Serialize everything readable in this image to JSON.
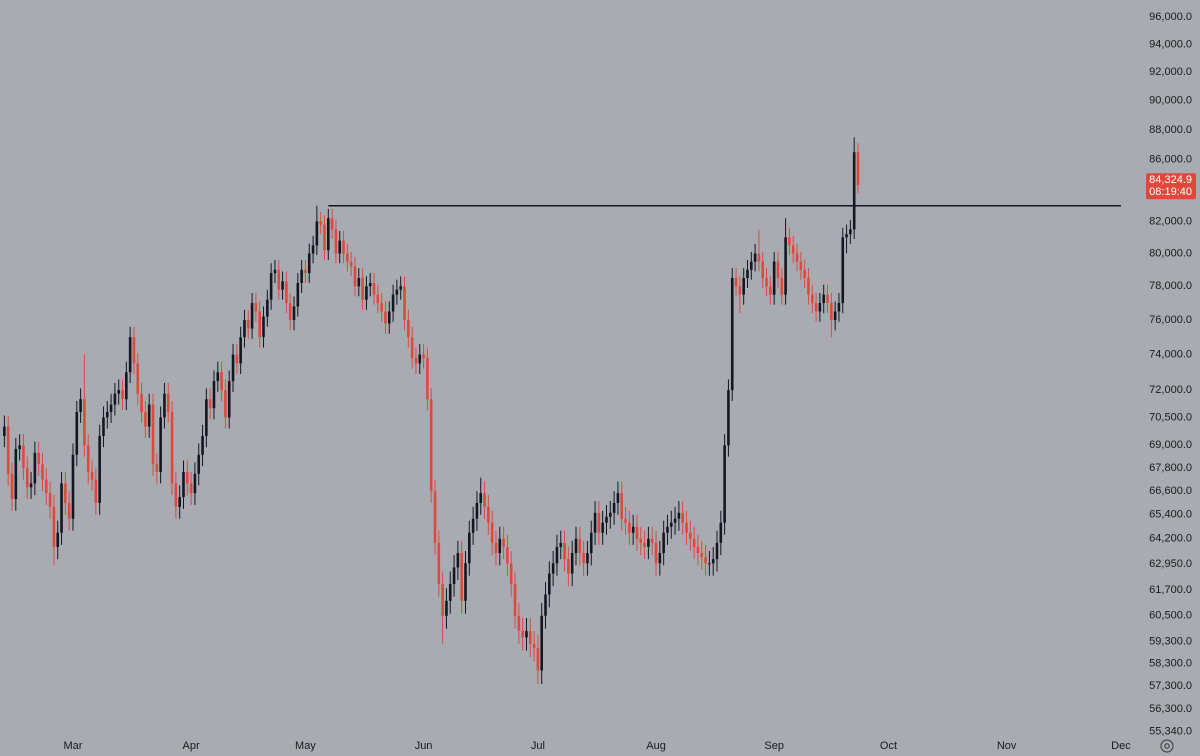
{
  "chart_data": {
    "type": "candlestick",
    "log_scale": true,
    "background": "#a9abb3",
    "up_color": "#131722",
    "down_color": "#e0483c",
    "line_color": "#131722",
    "xlim": [
      -1.15,
      298
    ],
    "xticks": [
      {
        "value": 18,
        "label": "Mar"
      },
      {
        "value": 49,
        "label": "Apr"
      },
      {
        "value": 79,
        "label": "May"
      },
      {
        "value": 110,
        "label": "Jun"
      },
      {
        "value": 140,
        "label": "Jul"
      },
      {
        "value": 171,
        "label": "Aug"
      },
      {
        "value": 202,
        "label": "Sep"
      },
      {
        "value": 232,
        "label": "Oct"
      },
      {
        "value": 263,
        "label": "Nov"
      },
      {
        "value": 293,
        "label": "Dec"
      }
    ],
    "ylim": [
      54300,
      97270
    ],
    "yticks": [
      {
        "value": 96000,
        "label": "96,000.0"
      },
      {
        "value": 94000,
        "label": "94,000.0"
      },
      {
        "value": 92000,
        "label": "92,000.0"
      },
      {
        "value": 90000,
        "label": "90,000.0"
      },
      {
        "value": 88000,
        "label": "88,000.0"
      },
      {
        "value": 86000,
        "label": "86,000.0"
      },
      {
        "value": 82000,
        "label": "82,000.0"
      },
      {
        "value": 80000,
        "label": "80,000.0"
      },
      {
        "value": 78000,
        "label": "78,000.0"
      },
      {
        "value": 76000,
        "label": "76,000.0"
      },
      {
        "value": 74000,
        "label": "74,000.0"
      },
      {
        "value": 72000,
        "label": "72,000.0"
      },
      {
        "value": 70500,
        "label": "70,500.0"
      },
      {
        "value": 69000,
        "label": "69,000.0"
      },
      {
        "value": 67800,
        "label": "67,800.0"
      },
      {
        "value": 66600,
        "label": "66,600.0"
      },
      {
        "value": 65400,
        "label": "65,400.0"
      },
      {
        "value": 64200,
        "label": "64,200.0"
      },
      {
        "value": 62950,
        "label": "62,950.0"
      },
      {
        "value": 61700,
        "label": "61,700.0"
      },
      {
        "value": 60500,
        "label": "60,500.0"
      },
      {
        "value": 59300,
        "label": "59,300.0"
      },
      {
        "value": 58300,
        "label": "58,300.0"
      },
      {
        "value": 57300,
        "label": "57,300.0"
      },
      {
        "value": 56300,
        "label": "56,300.0"
      },
      {
        "value": 55340,
        "label": "55,340.0"
      }
    ],
    "level_line": {
      "value": 83000,
      "from": 85,
      "to": 293
    },
    "last_price_label": "84,324.9",
    "countdown_label": "08:19:40",
    "open": [
      69500,
      70000,
      67500,
      66200,
      68800,
      69000,
      67800,
      66800,
      67000,
      68600,
      68000,
      67200,
      66500,
      65800,
      63800,
      64500,
      67000,
      66000,
      65200,
      68500,
      70800,
      71500,
      69000,
      67600,
      67200,
      66000,
      69500,
      70500,
      70800,
      71200,
      71800,
      72000,
      71500,
      73000,
      75000,
      73500,
      71800,
      70800,
      70000,
      71200,
      68000,
      67600,
      70500,
      71800,
      70800,
      67000,
      65800,
      66300,
      67600,
      67000,
      66500,
      67500,
      68500,
      69500,
      71500,
      71000,
      72500,
      73000,
      72000,
      70500,
      72500,
      74000,
      73500,
      75000,
      76000,
      75500,
      77000,
      76500,
      75000,
      76200,
      77200,
      78800,
      79000,
      77800,
      78300,
      77000,
      76000,
      76800,
      78200,
      79000,
      78800,
      80000,
      80500,
      82000,
      81800,
      80200,
      82200,
      81500,
      80000,
      80800,
      80000,
      79500,
      79200,
      78000,
      78500,
      77200,
      78000,
      78200,
      77500,
      77000,
      76500,
      75800,
      76500,
      77500,
      77800,
      78000,
      76000,
      75000,
      73800,
      73500,
      74000,
      73800,
      71500,
      66600,
      64000,
      62000,
      60500,
      61200,
      62000,
      62800,
      63500,
      61200,
      63000,
      64500,
      65200,
      66000,
      66500,
      65800,
      65000,
      64000,
      63500,
      64200,
      63800,
      63000,
      62000,
      60500,
      59800,
      59500,
      59800,
      59200,
      59000,
      58000,
      60500,
      61500,
      62500,
      63000,
      63800,
      64000,
      63200,
      62500,
      63500,
      64200,
      63500,
      63000,
      63500,
      64500,
      65500,
      64500,
      65000,
      65300,
      65500,
      66000,
      66500,
      65200,
      65000,
      64500,
      64800,
      64200,
      64000,
      63800,
      64200,
      64000,
      63000,
      63500,
      64500,
      64800,
      65000,
      65200,
      65500,
      65000,
      64500,
      64200,
      63800,
      63500,
      63300,
      63000,
      63000,
      63200,
      64000,
      65000,
      69000,
      72000,
      78500,
      78000,
      77500,
      78500,
      79000,
      79500,
      80000,
      79500,
      78500,
      78000,
      77500,
      79500,
      78500,
      77500,
      81000,
      80500,
      80000,
      79500,
      79000,
      78500,
      77500,
      77000,
      76500,
      77000,
      77500,
      77000,
      76000,
      76500,
      77000,
      81000,
      81200,
      81500,
      86500
    ],
    "high": [
      70600,
      70600,
      68100,
      69400,
      69600,
      69600,
      68400,
      67600,
      69200,
      69200,
      68600,
      67800,
      67100,
      66400,
      65100,
      67600,
      67600,
      66600,
      69100,
      71400,
      72100,
      74000,
      69600,
      68200,
      67800,
      70100,
      71100,
      71400,
      71800,
      72400,
      72600,
      72600,
      73600,
      75600,
      75600,
      74100,
      72400,
      71400,
      71800,
      71800,
      68600,
      71100,
      72400,
      72400,
      71400,
      67600,
      66900,
      68200,
      68200,
      67600,
      68100,
      69100,
      70100,
      72100,
      72100,
      73100,
      73600,
      73600,
      72600,
      73100,
      74600,
      74600,
      75600,
      76600,
      76600,
      77600,
      77600,
      77100,
      76800,
      77800,
      79400,
      79600,
      79600,
      78900,
      78900,
      77600,
      77400,
      78800,
      79600,
      79600,
      80600,
      81100,
      83000,
      82600,
      82400,
      82800,
      82800,
      82100,
      81400,
      81400,
      80600,
      80100,
      79800,
      79100,
      79100,
      78600,
      78800,
      78800,
      78100,
      77600,
      77100,
      77100,
      78100,
      78400,
      78600,
      78600,
      76600,
      75600,
      74400,
      74600,
      74600,
      74400,
      72100,
      67200,
      64600,
      62600,
      61800,
      62600,
      63400,
      64100,
      64100,
      63600,
      65100,
      65800,
      66600,
      67300,
      67100,
      66400,
      65600,
      64600,
      64800,
      64800,
      64400,
      63600,
      62600,
      61100,
      60400,
      60400,
      60400,
      59800,
      59600,
      61100,
      62100,
      63100,
      63600,
      64400,
      64600,
      64600,
      63800,
      64100,
      64800,
      64800,
      64100,
      64100,
      65100,
      66100,
      66100,
      65600,
      65900,
      66100,
      66600,
      67100,
      67100,
      65800,
      65600,
      65400,
      65400,
      64800,
      64600,
      64800,
      64800,
      64600,
      64100,
      65100,
      65400,
      65600,
      65800,
      66100,
      66100,
      65600,
      65100,
      64800,
      64400,
      64100,
      63900,
      63600,
      63800,
      64600,
      65600,
      69600,
      72600,
      79100,
      79100,
      78600,
      79100,
      79600,
      80100,
      80600,
      81500,
      80100,
      79100,
      78600,
      80100,
      80100,
      79100,
      82200,
      81600,
      81100,
      80600,
      80100,
      79600,
      79100,
      78100,
      77600,
      77600,
      78100,
      78100,
      77600,
      77100,
      77600,
      81600,
      81800,
      82100,
      87500,
      87100
    ],
    "low": [
      68900,
      66900,
      65600,
      65600,
      68200,
      67200,
      66200,
      66200,
      66400,
      67400,
      66600,
      65900,
      65200,
      62900,
      63200,
      63900,
      65400,
      64600,
      64600,
      67900,
      70200,
      68400,
      67000,
      66600,
      65400,
      65400,
      68900,
      69900,
      70200,
      70600,
      71200,
      70900,
      70900,
      72400,
      72900,
      71200,
      70200,
      69400,
      69400,
      67400,
      67000,
      67000,
      69900,
      70200,
      66400,
      65200,
      65200,
      65700,
      66400,
      65900,
      65900,
      66900,
      67900,
      68900,
      70400,
      70400,
      71900,
      71400,
      69900,
      69900,
      71900,
      72900,
      72900,
      74400,
      74900,
      74900,
      75900,
      74400,
      74400,
      75600,
      76600,
      78200,
      77200,
      77200,
      76400,
      75400,
      75400,
      76200,
      77600,
      78200,
      78200,
      79400,
      79900,
      81200,
      79600,
      79600,
      80900,
      79400,
      79400,
      79400,
      78900,
      78600,
      77400,
      77400,
      76600,
      76600,
      77400,
      76900,
      76400,
      75900,
      75200,
      75200,
      75900,
      76900,
      77200,
      75400,
      74400,
      73200,
      72900,
      72900,
      73200,
      70900,
      66000,
      63400,
      61400,
      59200,
      59900,
      60600,
      61400,
      62200,
      60600,
      60600,
      62400,
      63900,
      64600,
      65400,
      65200,
      64400,
      63400,
      62900,
      62900,
      63200,
      62400,
      61400,
      59900,
      59200,
      58900,
      58900,
      58600,
      58400,
      57400,
      57400,
      59900,
      60900,
      61900,
      62400,
      63200,
      62600,
      61900,
      61900,
      62900,
      62900,
      62400,
      62400,
      62900,
      63900,
      63900,
      63900,
      64400,
      64700,
      64900,
      65400,
      64600,
      64400,
      63900,
      63900,
      63600,
      63400,
      63200,
      63200,
      63400,
      62400,
      62400,
      62900,
      63900,
      64200,
      64400,
      64600,
      64400,
      63900,
      63600,
      63200,
      62900,
      62700,
      62400,
      62400,
      62400,
      62600,
      63400,
      64400,
      68400,
      71400,
      77400,
      76400,
      76900,
      77900,
      78400,
      78900,
      78900,
      77900,
      77400,
      76900,
      76900,
      77900,
      76900,
      76900,
      79900,
      79400,
      78900,
      78400,
      77900,
      76900,
      76400,
      75900,
      75900,
      76400,
      76400,
      75000,
      75400,
      75900,
      76400,
      80000,
      80600,
      80900,
      83800
    ],
    "close": [
      70000,
      67500,
      66200,
      68800,
      69000,
      67800,
      66800,
      67000,
      68600,
      68000,
      67200,
      66500,
      65800,
      63800,
      64500,
      67000,
      66000,
      65200,
      68500,
      70800,
      71500,
      69000,
      67600,
      67200,
      66000,
      69500,
      70500,
      70800,
      71200,
      71800,
      72000,
      71500,
      73000,
      75000,
      73500,
      71800,
      70800,
      70000,
      71200,
      68000,
      67600,
      70500,
      71800,
      70800,
      67000,
      65800,
      66300,
      67600,
      67000,
      66500,
      67500,
      68500,
      69500,
      71500,
      71000,
      72500,
      73000,
      72000,
      70500,
      72500,
      74000,
      73500,
      75000,
      76000,
      75500,
      77000,
      76500,
      75000,
      76200,
      77200,
      78800,
      79000,
      77800,
      78300,
      77000,
      76000,
      76800,
      78200,
      79000,
      78800,
      80000,
      80500,
      82000,
      81800,
      80200,
      82200,
      81500,
      80000,
      80800,
      80000,
      79500,
      79200,
      78000,
      78500,
      77200,
      78000,
      78200,
      77500,
      77000,
      76500,
      75800,
      76500,
      77500,
      77800,
      78000,
      76000,
      75000,
      73800,
      73500,
      74000,
      73800,
      71500,
      66600,
      64000,
      62000,
      60500,
      61200,
      62000,
      62800,
      63500,
      61200,
      63000,
      64500,
      65200,
      66000,
      66500,
      65800,
      65000,
      64000,
      63500,
      64200,
      63800,
      63000,
      62000,
      60500,
      59800,
      59500,
      59800,
      59200,
      59000,
      58000,
      60500,
      61500,
      62500,
      63000,
      63800,
      64000,
      63200,
      62500,
      63500,
      64200,
      63500,
      63000,
      63500,
      64500,
      65500,
      64500,
      65000,
      65300,
      65500,
      66000,
      66500,
      65200,
      65000,
      64500,
      64800,
      64200,
      64000,
      63800,
      64200,
      64000,
      63000,
      63500,
      64500,
      64800,
      65000,
      65200,
      65500,
      65000,
      64500,
      64200,
      63800,
      63500,
      63300,
      63000,
      63000,
      63200,
      64000,
      65000,
      69000,
      72000,
      78500,
      78000,
      77500,
      78500,
      79000,
      79500,
      80000,
      79500,
      78500,
      78000,
      77500,
      79500,
      78500,
      77500,
      81000,
      80500,
      80000,
      79500,
      79000,
      78500,
      77500,
      77000,
      76500,
      77000,
      77500,
      77000,
      76000,
      76500,
      77000,
      81000,
      81200,
      81500,
      86500,
      84324.9
    ]
  }
}
